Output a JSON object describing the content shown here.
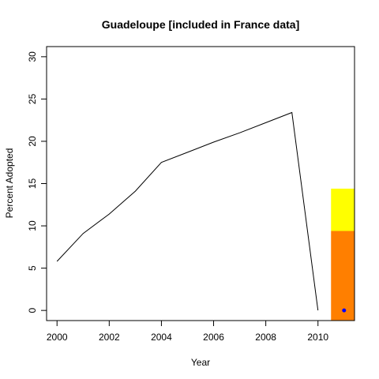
{
  "chart_data": {
    "type": "line",
    "title": "Guadeloupe [included in France data]",
    "xlabel": "Year",
    "ylabel": "Percent Adopted",
    "xlim": [
      1999.6,
      2011.4
    ],
    "ylim": [
      -1.2,
      31.2
    ],
    "x_ticks": [
      2000,
      2002,
      2004,
      2006,
      2008,
      2010
    ],
    "y_ticks": [
      0,
      5,
      10,
      15,
      20,
      25,
      30
    ],
    "grid": false,
    "legend": "none",
    "series": [
      {
        "x": [
          2000,
          2001,
          2002,
          2003,
          2004,
          2005,
          2006,
          2007,
          2008,
          2009,
          2010
        ],
        "y": [
          5.8,
          9.1,
          11.4,
          14.1,
          17.5,
          18.7,
          19.9,
          21.0,
          22.2,
          23.4,
          0.0
        ],
        "color": "#000000"
      }
    ],
    "bar_segments": [
      {
        "x0": 2010.5,
        "x1": 2011.4,
        "y0": -1.2,
        "y1": 9.4,
        "color": "#ff7f00"
      },
      {
        "x0": 2010.5,
        "x1": 2011.4,
        "y0": 9.4,
        "y1": 14.4,
        "color": "#ffff00"
      }
    ],
    "marker": {
      "x": 2011,
      "y": 0,
      "color": "#0000ff"
    }
  }
}
